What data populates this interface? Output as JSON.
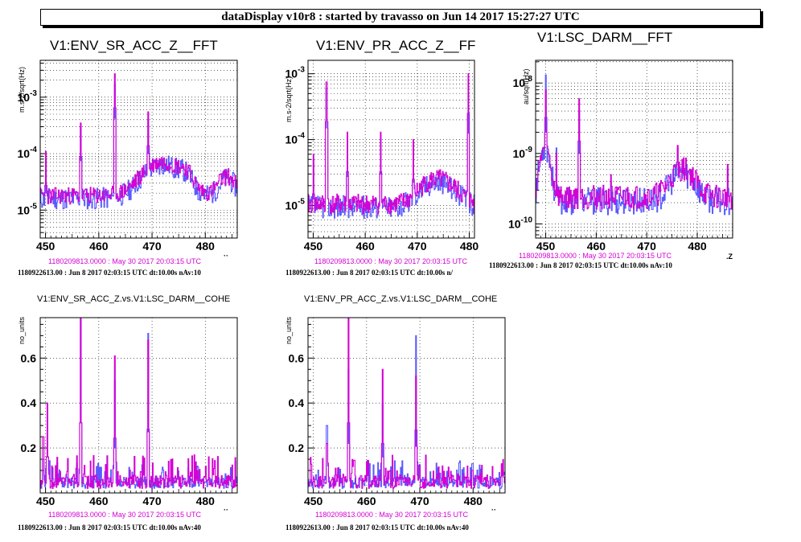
{
  "window": {
    "title": "dataDisplay v10r8 : started by travasso on Jun 14 2017 15:27:27 UTC"
  },
  "colors": {
    "series_a": "#d400d4",
    "series_b": "#5a5aff",
    "grid": "#000000"
  },
  "panels": [
    {
      "title": "V1:ENV_SR_ACC_Z__FFT",
      "ylabel": "m.s-2/sqrt(Hz)",
      "ref_time_label": "1180209813.0000 : May 30 2017 20:03:15 UTC",
      "info_label": "1180922613.00 : Jun  8 2017 02:03:15 UTC dt:10.00s nAv:10",
      "x_truncated_label": "·· "
    },
    {
      "title": "V1:ENV_PR_ACC_Z__FF",
      "ylabel": "m.s-2/sqrt(Hz)",
      "ref_time_label": "1180209813.0000 : May 30 2017 20:03:15 UTC",
      "info_label": "1180922613.00 : Jun  8 2017 02:03:15 UTC dt:10.00s n/",
      "x_truncated_label": ""
    },
    {
      "title": "V1:LSC_DARM__FFT",
      "ylabel": "au/sqrt(Hz)",
      "ref_time_label": "1180209813.0000 : May 30 2017 20:03:15 UTC",
      "info_label": "1180922613.00 : Jun  8 2017 02:03:15 UTC dt:10.00s nAv:10",
      "x_truncated_label": ".Z"
    },
    {
      "title": "V1:ENV_SR_ACC_Z.vs.V1:LSC_DARM__COHE",
      "ylabel": "no_units",
      "ref_time_label": "1180209813.0000 : May 30 2017 20:03:15 UTC",
      "info_label": "1180922613.00 : Jun  8 2017 02:03:15 UTC dt:10.00s nAv:40",
      "x_truncated_label": "··"
    },
    {
      "title": "V1:ENV_PR_ACC_Z.vs.V1:LSC_DARM__COHE",
      "ylabel": "no_units",
      "ref_time_label": "1180209813.0000 : May 30 2017 20:03:15 UTC",
      "info_label": "1180922613.00 : Jun  8 2017 02:03:15 UTC dt:10.00s nAv:40",
      "x_truncated_label": "··"
    }
  ],
  "chart_data": [
    {
      "type": "line",
      "title": "V1:ENV_SR_ACC_Z__FFT",
      "ylabel": "m.s-2/sqrt(Hz)",
      "yscale": "log",
      "xlim": [
        449,
        486
      ],
      "ylim": [
        3.2e-06,
        0.0045
      ],
      "x_ticks": [
        450,
        460,
        470,
        480
      ],
      "y_ticks": [
        {
          "value": 1e-05,
          "base": "10",
          "exp": "-5"
        },
        {
          "value": 0.0001,
          "base": "10",
          "exp": "-4"
        },
        {
          "value": 0.001,
          "base": "10",
          "exp": "-3"
        }
      ],
      "grid": true,
      "series": [
        {
          "color": "#5a5aff",
          "base": 1.6e-05,
          "noise": 0.45,
          "seed": 11,
          "peaks": [
            [
              450,
              8e-05
            ],
            [
              456.5,
              0.0003
            ],
            [
              462.9,
              0.0017
            ],
            [
              469.2,
              0.0004
            ],
            [
              478.5,
              2.5e-05
            ]
          ],
          "bumps": [
            [
              472,
              4.5,
              3.0
            ],
            [
              476.5,
              1.5,
              0.35
            ],
            [
              484,
              2.0,
              1.2
            ]
          ]
        },
        {
          "color": "#d400d4",
          "base": 1.8e-05,
          "noise": 0.35,
          "seed": 23,
          "peaks": [
            [
              450,
              0.00011
            ],
            [
              456.5,
              0.00035
            ],
            [
              462.9,
              0.0026
            ],
            [
              469.2,
              0.00055
            ],
            [
              478.5,
              3e-05
            ]
          ],
          "bumps": [
            [
              472,
              4.5,
              3.0
            ],
            [
              476.5,
              1.5,
              0.4
            ],
            [
              484,
              2.0,
              1.2
            ]
          ]
        }
      ]
    },
    {
      "type": "line",
      "title": "V1:ENV_PR_ACC_Z__FF",
      "ylabel": "m.s-2/sqrt(Hz)",
      "yscale": "log",
      "xlim": [
        449,
        481
      ],
      "ylim": [
        3.2e-06,
        0.0016
      ],
      "x_ticks": [
        450,
        460,
        470,
        480
      ],
      "y_ticks": [
        {
          "value": 1e-05,
          "base": "10",
          "exp": "-5"
        },
        {
          "value": 0.0001,
          "base": "10",
          "exp": "-4"
        },
        {
          "value": 0.001,
          "base": "10",
          "exp": "-3"
        }
      ],
      "grid": true,
      "series": [
        {
          "color": "#5a5aff",
          "base": 9.5e-06,
          "noise": 0.4,
          "seed": 37,
          "peaks": [
            [
              450,
              5e-05
            ],
            [
              452.5,
              0.0006
            ],
            [
              456.5,
              0.00011
            ],
            [
              462.9,
              0.00012
            ],
            [
              469.2,
              9e-05
            ],
            [
              479.8,
              0.0005
            ]
          ],
          "bumps": [
            [
              472,
              3.0,
              0.9
            ],
            [
              476,
              3.0,
              0.8
            ]
          ]
        },
        {
          "color": "#d400d4",
          "base": 1.05e-05,
          "noise": 0.35,
          "seed": 41,
          "peaks": [
            [
              450,
              6e-05
            ],
            [
              452.5,
              0.00075
            ],
            [
              456.5,
              0.00013
            ],
            [
              462.9,
              0.00013
            ],
            [
              469.2,
              0.0001
            ],
            [
              479.8,
              0.001
            ]
          ],
          "bumps": [
            [
              472,
              3.0,
              0.9
            ],
            [
              476,
              3.0,
              0.8
            ]
          ]
        }
      ]
    },
    {
      "type": "line",
      "title": "V1:LSC_DARM__FFT",
      "ylabel": "au/sqrt(Hz)",
      "yscale": "log",
      "xlim": [
        448,
        487
      ],
      "ylim": [
        6.3e-11,
        2.1e-08
      ],
      "x_ticks": [
        450,
        460,
        470,
        480
      ],
      "y_ticks": [
        {
          "value": 1e-10,
          "base": "10",
          "exp": "-10"
        },
        {
          "value": 1e-09,
          "base": "10",
          "exp": "-9"
        },
        {
          "value": 1e-08,
          "base": "10",
          "exp": "-8"
        }
      ],
      "grid": true,
      "series": [
        {
          "color": "#5a5aff",
          "base": 2.1e-10,
          "noise": 0.45,
          "seed": 53,
          "peaks": [
            [
              450,
              1.3e-08
            ],
            [
              452,
              1.2e-09
            ],
            [
              456.5,
              4e-09
            ],
            [
              462.9,
              4e-10
            ],
            [
              476,
              1.2e-09
            ],
            [
              478.5,
              5e-10
            ],
            [
              486,
              6e-10
            ]
          ],
          "bumps": [
            [
              449.8,
              1.2,
              5.0
            ],
            [
              477,
              3.0,
              1.5
            ]
          ]
        },
        {
          "color": "#d400d4",
          "base": 2.4e-10,
          "noise": 0.4,
          "seed": 59,
          "peaks": [
            [
              450,
              8e-09
            ],
            [
              452,
              1e-09
            ],
            [
              456.5,
              6e-09
            ],
            [
              462.9,
              5e-10
            ],
            [
              476,
              1.3e-09
            ],
            [
              478.5,
              6e-10
            ],
            [
              486,
              7e-10
            ]
          ],
          "bumps": [
            [
              449.8,
              1.2,
              4.0
            ],
            [
              477,
              3.0,
              1.5
            ]
          ]
        }
      ]
    },
    {
      "type": "line",
      "title": "V1:ENV_SR_ACC_Z.vs.V1:LSC_DARM__COHE",
      "ylabel": "no_units",
      "yscale": "linear",
      "xlim": [
        449,
        486
      ],
      "ylim": [
        0,
        0.78
      ],
      "x_ticks": [
        450,
        460,
        470,
        480
      ],
      "y_ticks": [
        {
          "value": 0.2,
          "label": "0.2"
        },
        {
          "value": 0.4,
          "label": "0.4"
        },
        {
          "value": 0.6,
          "label": "0.6"
        }
      ],
      "grid": true,
      "series": [
        {
          "color": "#5a5aff",
          "base": 0.02,
          "noise": 0.05,
          "seed": 71,
          "peaks": [
            [
              449.5,
              0.15
            ],
            [
              450.3,
              0.4
            ],
            [
              456.5,
              0.78
            ],
            [
              462.9,
              0.5
            ],
            [
              469.2,
              0.71
            ],
            [
              478.5,
              0.12
            ]
          ],
          "bumps": []
        },
        {
          "color": "#d400d4",
          "base": 0.02,
          "noise": 0.06,
          "seed": 83,
          "peaks": [
            [
              449.5,
              0.25
            ],
            [
              450.3,
              0.4
            ],
            [
              456.5,
              0.78
            ],
            [
              462.9,
              0.61
            ],
            [
              469.2,
              0.68
            ],
            [
              478.5,
              0.1
            ]
          ],
          "bumps": []
        }
      ]
    },
    {
      "type": "line",
      "title": "V1:ENV_PR_ACC_Z.vs.V1:LSC_DARM__COHE",
      "ylabel": "no_units",
      "yscale": "linear",
      "xlim": [
        449,
        486
      ],
      "ylim": [
        0,
        0.78
      ],
      "x_ticks": [
        450,
        460,
        470,
        480
      ],
      "y_ticks": [
        {
          "value": 0.2,
          "label": "0.2"
        },
        {
          "value": 0.4,
          "label": "0.4"
        },
        {
          "value": 0.6,
          "label": "0.6"
        }
      ],
      "grid": true,
      "series": [
        {
          "color": "#5a5aff",
          "base": 0.02,
          "noise": 0.05,
          "seed": 97,
          "peaks": [
            [
              452.5,
              0.3
            ],
            [
              456.5,
              0.55
            ],
            [
              462.9,
              0.4
            ],
            [
              469.2,
              0.7
            ],
            [
              479.8,
              0.13
            ],
            [
              485.5,
              0.09
            ]
          ],
          "bumps": []
        },
        {
          "color": "#d400d4",
          "base": 0.02,
          "noise": 0.06,
          "seed": 101,
          "peaks": [
            [
              452.5,
              0.22
            ],
            [
              456.5,
              0.78
            ],
            [
              462.9,
              0.55
            ],
            [
              469.2,
              0.52
            ],
            [
              479.8,
              0.1
            ]
          ],
          "bumps": []
        }
      ]
    }
  ]
}
